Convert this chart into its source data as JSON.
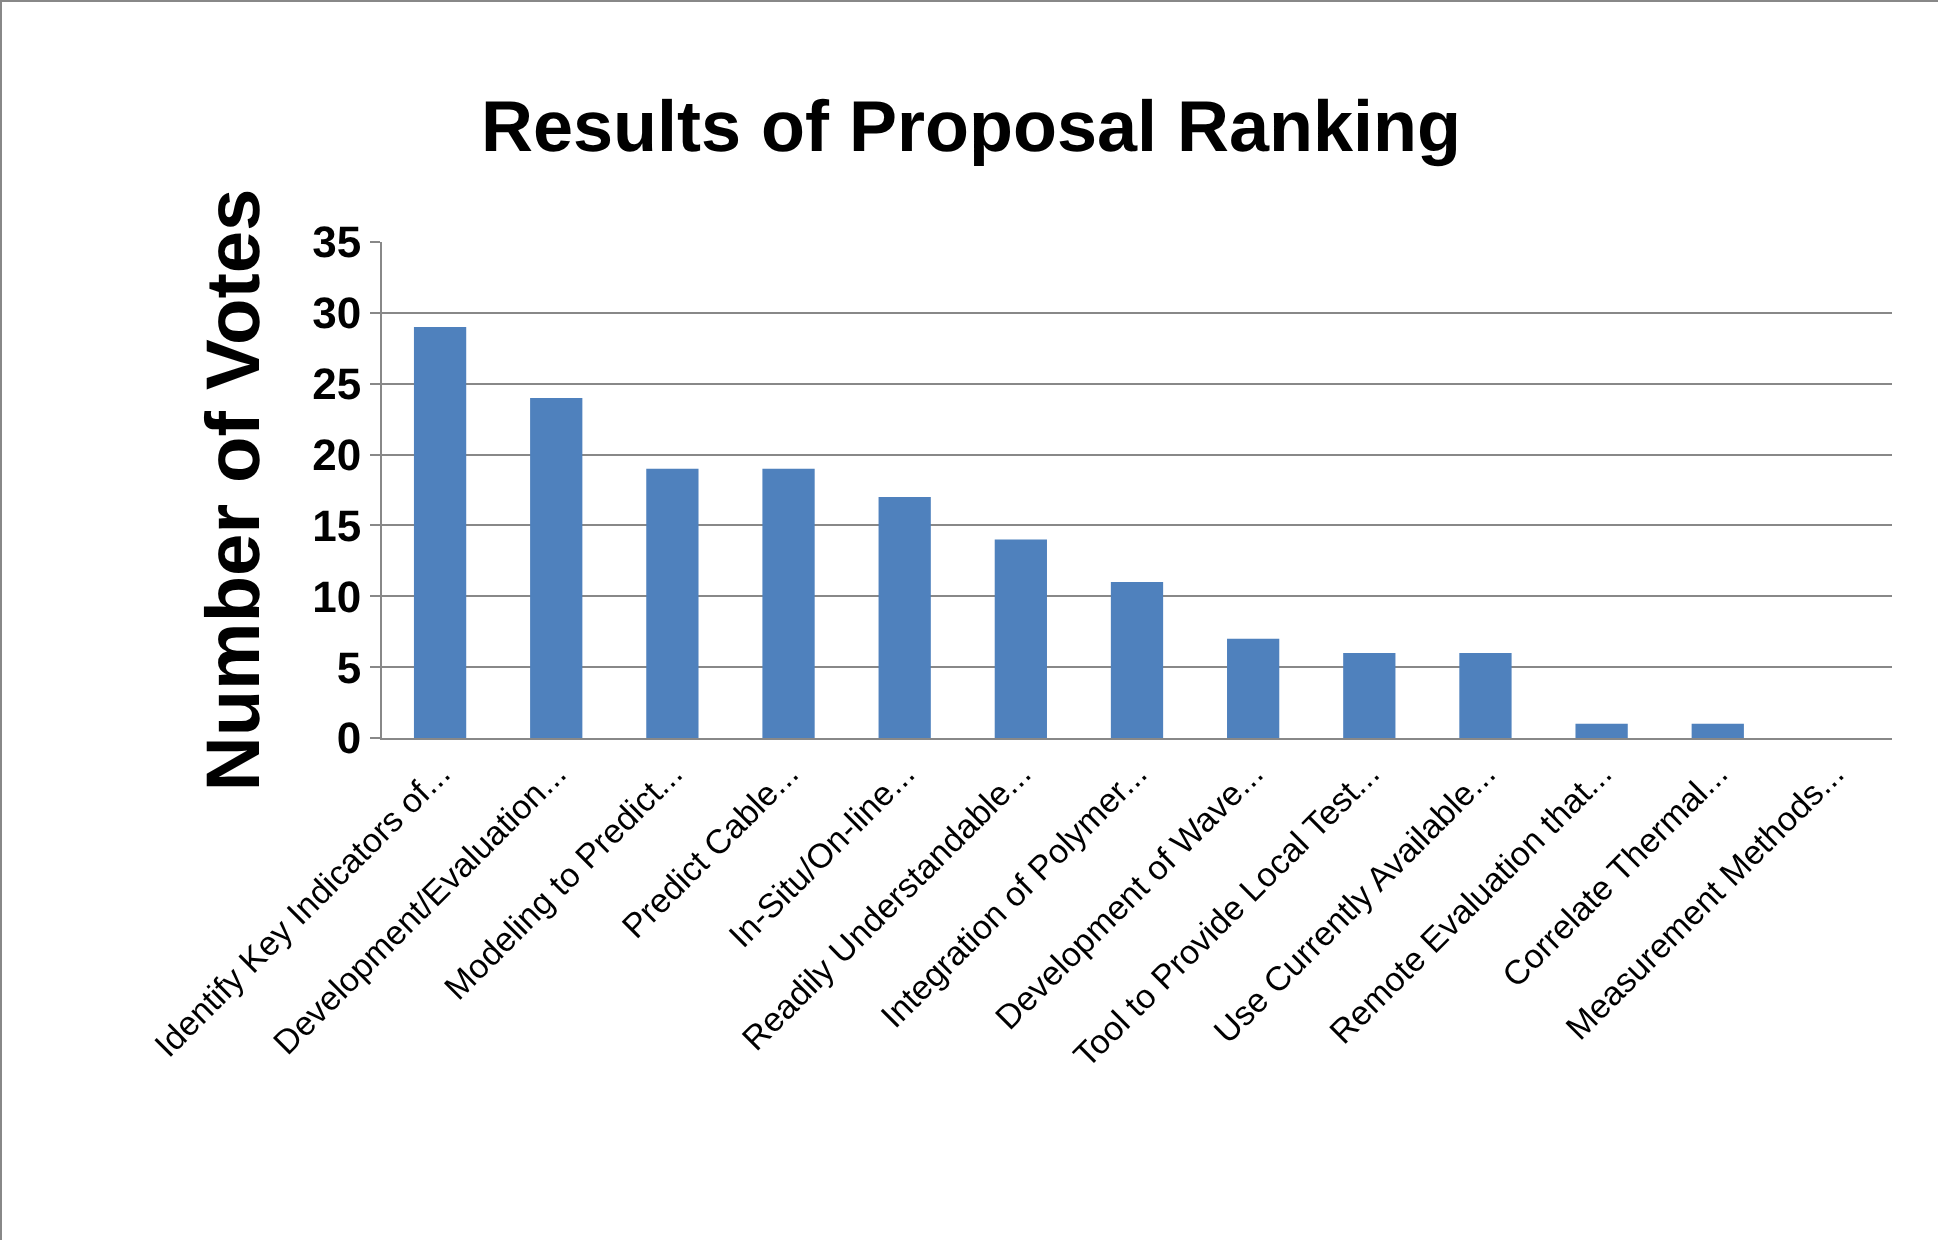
{
  "chart_data": {
    "type": "bar",
    "title": "Results of Proposal Ranking",
    "ylabel": "Number of Votes",
    "categories": [
      "Identify Key Indicators of...",
      "Development/Evaluation...",
      "Modeling to Predict...",
      "Predict Cable...",
      "In-Situ/On-line...",
      "Readily Understandable...",
      "Integration of Polymer...",
      "Development of Wave...",
      "Tool to Provide Local Test...",
      "Use Currently Available...",
      "Remote Evaluation that...",
      "Correlate Thermal...",
      "Measurement Methods..."
    ],
    "values": [
      29,
      24,
      19,
      19,
      17,
      14,
      11,
      7,
      6,
      6,
      1,
      1,
      0
    ],
    "color": "#4f81bd",
    "ylim": [
      0,
      35
    ],
    "yticks": [
      0,
      5,
      10,
      15,
      20,
      25,
      30,
      35
    ],
    "grid": "y"
  }
}
